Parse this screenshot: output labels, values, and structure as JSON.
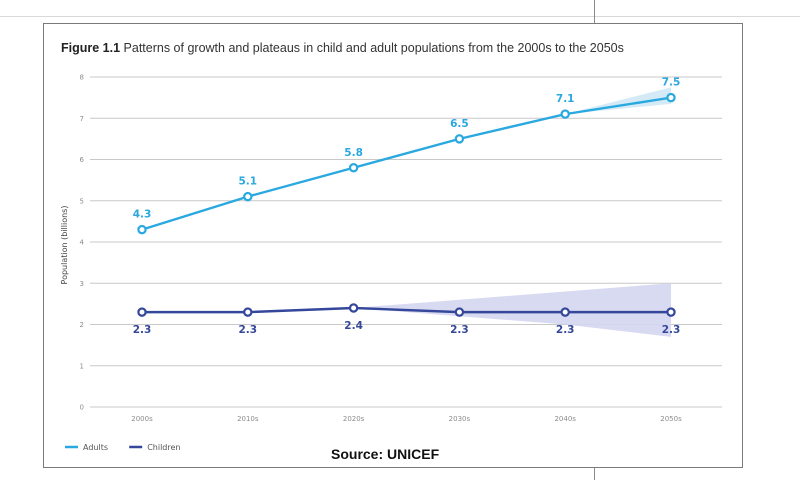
{
  "figure": {
    "label": "Figure 1.1",
    "caption": "Patterns of growth and plateaus in child and adult populations from the 2000s to the 2050s"
  },
  "source": "Source: UNICEF",
  "colors": {
    "adults": "#2aa8e0",
    "children": "#34479a",
    "adults_band": "#cfe9f6",
    "children_band": "#d4d6ef",
    "grid": "#c8c8c8"
  },
  "chart_data": {
    "type": "line",
    "title": "Patterns of growth and plateaus in child and adult populations from the 2000s to the 2050s",
    "xlabel": "",
    "ylabel": "Population (billions)",
    "categories": [
      "2000s",
      "2010s",
      "2020s",
      "2030s",
      "2040s",
      "2050s"
    ],
    "ylim": [
      0,
      8
    ],
    "yticks": [
      0,
      1,
      2,
      3,
      4,
      5,
      6,
      7,
      8
    ],
    "grid": true,
    "legend": "bottom-left",
    "series": [
      {
        "name": "Adults",
        "color": "#2aa8e0",
        "values": [
          4.3,
          5.1,
          5.8,
          6.5,
          7.1,
          7.5
        ],
        "labels": [
          "4.3",
          "5.1",
          "5.8",
          "6.5",
          "7.1",
          "7.5"
        ],
        "band": {
          "from_index": 4,
          "lower": [
            7.1,
            7.35
          ],
          "upper": [
            7.1,
            7.75
          ]
        }
      },
      {
        "name": "Children",
        "color": "#34479a",
        "values": [
          2.3,
          2.3,
          2.4,
          2.3,
          2.3,
          2.3
        ],
        "labels": [
          "2.3",
          "2.3",
          "2.4",
          "2.3",
          "2.3",
          "2.3"
        ],
        "band": {
          "from_index": 2,
          "lower": [
            2.4,
            2.2,
            2.0,
            1.7
          ],
          "upper": [
            2.4,
            2.6,
            2.8,
            3.0
          ]
        }
      }
    ]
  }
}
